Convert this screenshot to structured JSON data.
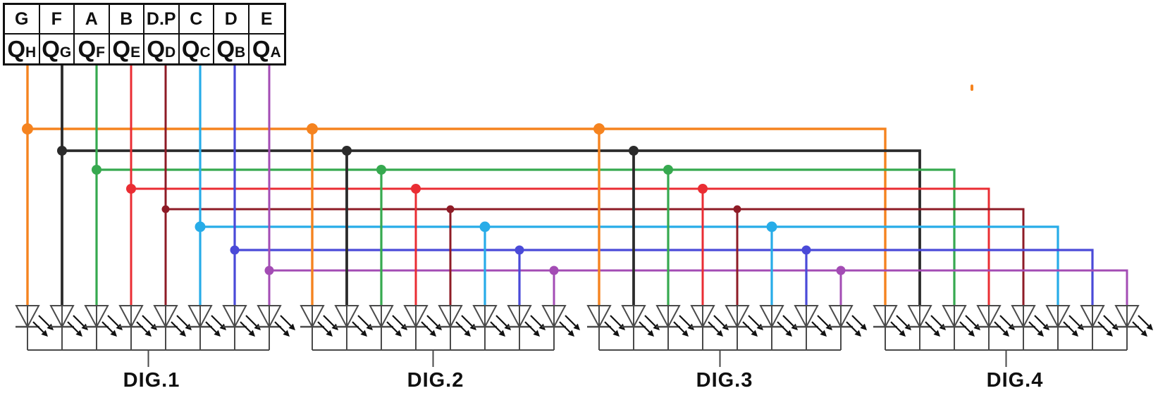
{
  "pin_table": {
    "segments": [
      "G",
      "F",
      "A",
      "B",
      "D.P",
      "C",
      "D",
      "E"
    ],
    "outputs": [
      {
        "main": "Q",
        "sub": "H"
      },
      {
        "main": "Q",
        "sub": "G"
      },
      {
        "main": "Q",
        "sub": "F"
      },
      {
        "main": "Q",
        "sub": "E"
      },
      {
        "main": "Q",
        "sub": "D"
      },
      {
        "main": "Q",
        "sub": "C"
      },
      {
        "main": "Q",
        "sub": "B"
      },
      {
        "main": "Q",
        "sub": "A"
      }
    ]
  },
  "wires": [
    {
      "output": "QH",
      "segment": "G",
      "color": "#F5831F"
    },
    {
      "output": "QG",
      "segment": "F",
      "color": "#2B2B2B"
    },
    {
      "output": "QF",
      "segment": "A",
      "color": "#36A94F"
    },
    {
      "output": "QE",
      "segment": "B",
      "color": "#EA2D33"
    },
    {
      "output": "QD",
      "segment": "D.P",
      "color": "#8E1B26"
    },
    {
      "output": "QC",
      "segment": "C",
      "color": "#27ACE8"
    },
    {
      "output": "QB",
      "segment": "D",
      "color": "#4A4AD8"
    },
    {
      "output": "QA",
      "segment": "E",
      "color": "#A34CB4"
    }
  ],
  "digits": [
    {
      "label": "DIG.1"
    },
    {
      "label": "DIG.2"
    },
    {
      "label": "DIG.3"
    },
    {
      "label": "DIG.4"
    }
  ],
  "leds_per_digit": 8,
  "led_outline_color": "#4A4A4A",
  "arrow_color": "#111111"
}
